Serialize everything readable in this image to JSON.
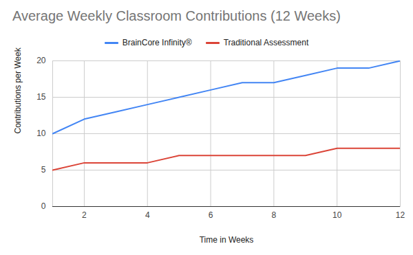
{
  "chart_data": {
    "type": "line",
    "title": "Average Weekly Classroom Contributions (12 Weeks)",
    "x_label": "Time in Weeks",
    "y_label": "Contributions per Week",
    "x": [
      1,
      2,
      3,
      4,
      5,
      6,
      7,
      8,
      9,
      10,
      11,
      12
    ],
    "series": [
      {
        "name": "BrainCore Infinity®",
        "color": "#4285f4",
        "values": [
          10,
          12,
          13,
          14,
          15,
          16,
          17,
          17,
          18,
          19,
          19,
          20
        ]
      },
      {
        "name": "Traditional Assessment",
        "color": "#db4437",
        "values": [
          5,
          6,
          6,
          6,
          7,
          7,
          7,
          7,
          7,
          8,
          8,
          8
        ]
      }
    ],
    "xlim": [
      1,
      12
    ],
    "xticks": [
      2,
      4,
      6,
      8,
      10,
      12
    ],
    "ylim": [
      0,
      20
    ],
    "yticks": [
      0,
      5,
      10,
      15,
      20
    ],
    "grid": true,
    "legend": "top"
  }
}
